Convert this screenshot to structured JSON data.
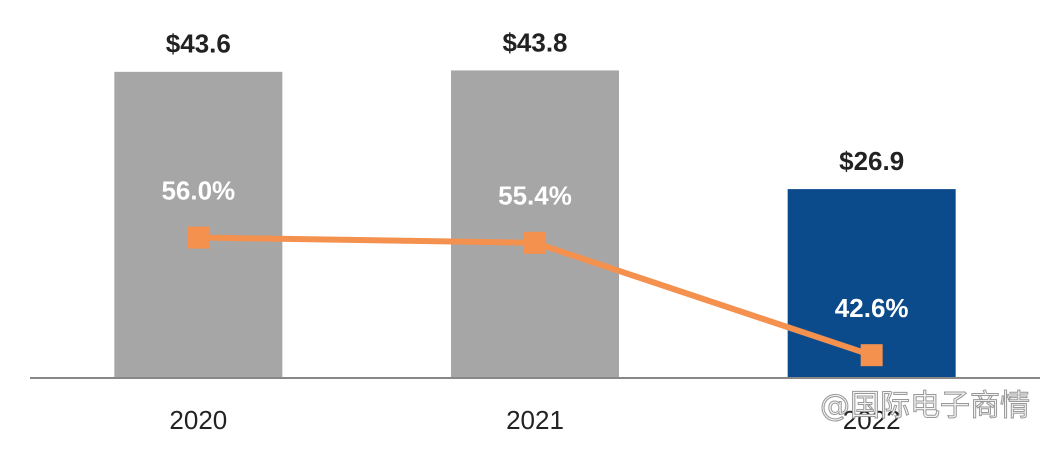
{
  "chart_data": {
    "type": "bar-line",
    "categories": [
      "2020",
      "2021",
      "2022"
    ],
    "series": [
      {
        "type": "bar",
        "colors": [
          "#a6a6a6",
          "#a6a6a6",
          "#0b4a8b"
        ],
        "values": [
          43.6,
          43.8,
          26.9
        ],
        "value_labels": [
          "$43.6",
          "$43.8",
          "$26.9"
        ]
      },
      {
        "type": "line",
        "axis": "y2",
        "color": "#f4914f",
        "values": [
          56.0,
          55.4,
          42.6
        ],
        "value_labels": [
          "56.0%",
          "55.4%",
          "42.6%"
        ]
      }
    ],
    "ylim": [
      0,
      45
    ],
    "y2lim": [
      40,
      76
    ],
    "watermark": "@国际电子商情"
  }
}
